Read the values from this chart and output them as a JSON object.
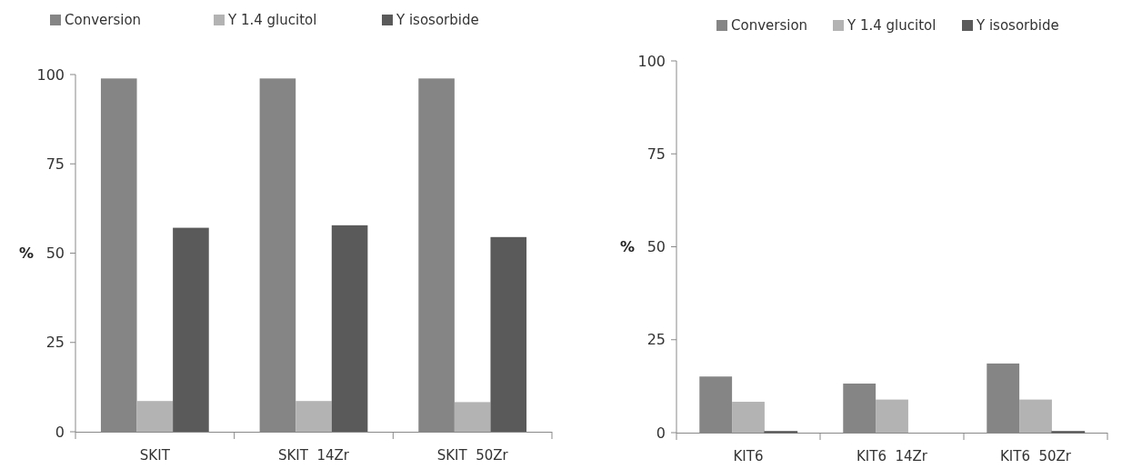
{
  "chart_data": [
    {
      "type": "bar",
      "ylabel": "%",
      "categories": [
        "SKIT",
        "SKIT  14Zr",
        "SKIT  50Zr"
      ],
      "series": [
        {
          "name": "Conversion",
          "color": "#858585",
          "values": [
            98.9,
            98.9,
            98.9
          ]
        },
        {
          "name": "Y 1.4 glucitol",
          "color": "#b3b3b3",
          "values": [
            8.6,
            8.6,
            8.3
          ]
        },
        {
          "name": "Y isosorbide",
          "color": "#5a5a5a",
          "values": [
            57.1,
            57.8,
            54.5
          ]
        }
      ],
      "ylim": [
        0,
        100
      ],
      "yticks": [
        0,
        25,
        50,
        75,
        100
      ],
      "grid": false,
      "legend": "top"
    },
    {
      "type": "bar",
      "ylabel": "%",
      "categories": [
        "KIT6",
        "KIT6  14Zr",
        "KIT6  50Zr"
      ],
      "series": [
        {
          "name": "Conversion",
          "color": "#858585",
          "values": [
            15.1,
            13.2,
            18.6
          ]
        },
        {
          "name": "Y 1.4 glucitol",
          "color": "#b3b3b3",
          "values": [
            8.3,
            8.9,
            8.9
          ]
        },
        {
          "name": "Y isosorbide",
          "color": "#5a5a5a",
          "values": [
            0.3,
            0,
            0.3
          ]
        }
      ],
      "ylim": [
        0,
        100
      ],
      "yticks": [
        0,
        25,
        50,
        75,
        100
      ],
      "grid": false,
      "legend": "top"
    }
  ]
}
